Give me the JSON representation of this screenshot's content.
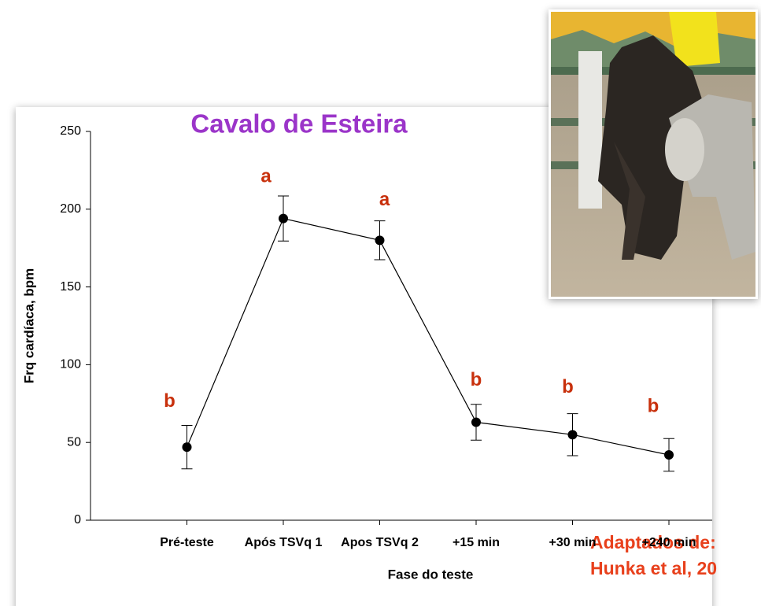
{
  "chart_data": {
    "type": "line",
    "title": "Cavalo de Esteira",
    "x_label": "Fase do teste",
    "y_label": "Frq cardíaca, bpm",
    "categories": [
      "Pré-teste",
      "Após TSVq 1",
      "Apos TSVq 2",
      "+15 min",
      "+30 min",
      "+240 min"
    ],
    "series": [
      {
        "color": "#000000",
        "values": [
          47,
          194,
          180,
          63,
          55,
          42
        ],
        "errors": [
          14,
          14.5,
          12.5,
          11.5,
          13.5,
          10.5
        ]
      }
    ],
    "point_labels": [
      "b",
      "a",
      "a",
      "b",
      "b",
      "b"
    ],
    "ylim": [
      0,
      250
    ],
    "yticks": [
      0,
      50,
      100,
      150,
      200,
      250
    ],
    "source": [
      "Adaptados de:",
      "Hunka et al, 20"
    ]
  }
}
